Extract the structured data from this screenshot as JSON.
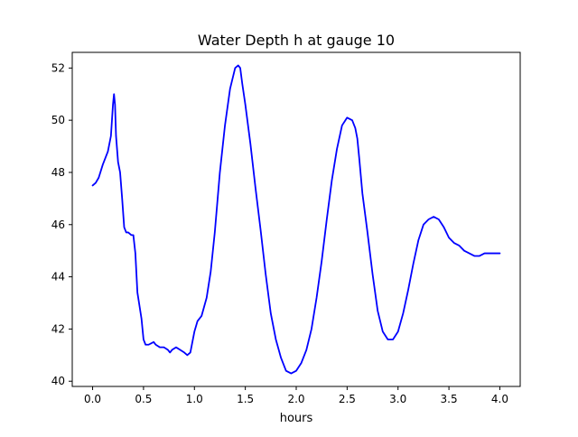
{
  "chart_data": {
    "type": "line",
    "title": "Water Depth h at gauge 10",
    "xlabel": "hours",
    "ylabel": "",
    "xlim": [
      -0.2,
      4.2
    ],
    "ylim": [
      39.8,
      52.6
    ],
    "xticks": [
      0.0,
      0.5,
      1.0,
      1.5,
      2.0,
      2.5,
      3.0,
      3.5,
      4.0
    ],
    "xtick_labels": [
      "0.0",
      "0.5",
      "1.0",
      "1.5",
      "2.0",
      "2.5",
      "3.0",
      "3.5",
      "4.0"
    ],
    "yticks": [
      40,
      42,
      44,
      46,
      48,
      50,
      52
    ],
    "ytick_labels": [
      "40",
      "42",
      "44",
      "46",
      "48",
      "50",
      "52"
    ],
    "grid": false,
    "legend": "none",
    "series": [
      {
        "color": "#0000ff",
        "x": [
          0.0,
          0.03,
          0.06,
          0.1,
          0.15,
          0.18,
          0.2,
          0.21,
          0.22,
          0.23,
          0.25,
          0.27,
          0.29,
          0.31,
          0.33,
          0.35,
          0.38,
          0.4,
          0.42,
          0.44,
          0.46,
          0.48,
          0.5,
          0.52,
          0.55,
          0.6,
          0.62,
          0.66,
          0.7,
          0.74,
          0.76,
          0.78,
          0.82,
          0.86,
          0.9,
          0.93,
          0.96,
          0.98,
          1.0,
          1.03,
          1.07,
          1.12,
          1.16,
          1.2,
          1.25,
          1.3,
          1.35,
          1.4,
          1.43,
          1.45,
          1.47,
          1.5,
          1.55,
          1.6,
          1.65,
          1.7,
          1.75,
          1.8,
          1.85,
          1.9,
          1.95,
          2.0,
          2.05,
          2.1,
          2.15,
          2.2,
          2.25,
          2.3,
          2.35,
          2.4,
          2.45,
          2.5,
          2.55,
          2.58,
          2.6,
          2.62,
          2.65,
          2.7,
          2.75,
          2.8,
          2.85,
          2.9,
          2.95,
          3.0,
          3.05,
          3.1,
          3.15,
          3.2,
          3.25,
          3.3,
          3.35,
          3.4,
          3.45,
          3.5,
          3.55,
          3.6,
          3.65,
          3.7,
          3.75,
          3.8,
          3.85,
          3.9,
          3.95,
          4.0
        ],
        "y": [
          47.5,
          47.6,
          47.8,
          48.3,
          48.8,
          49.4,
          50.6,
          51.0,
          50.6,
          49.4,
          48.4,
          48.0,
          47.0,
          45.9,
          45.7,
          45.7,
          45.6,
          45.6,
          44.9,
          43.4,
          42.9,
          42.4,
          41.6,
          41.4,
          41.4,
          41.5,
          41.4,
          41.3,
          41.3,
          41.2,
          41.1,
          41.2,
          41.3,
          41.2,
          41.1,
          41.0,
          41.1,
          41.5,
          41.9,
          42.3,
          42.5,
          43.2,
          44.2,
          45.7,
          48.0,
          49.8,
          51.2,
          52.0,
          52.1,
          52.0,
          51.4,
          50.6,
          49.1,
          47.4,
          45.8,
          44.1,
          42.6,
          41.6,
          40.9,
          40.4,
          40.3,
          40.4,
          40.7,
          41.2,
          42.0,
          43.2,
          44.6,
          46.2,
          47.7,
          48.9,
          49.8,
          50.1,
          50.0,
          49.7,
          49.3,
          48.5,
          47.2,
          45.7,
          44.1,
          42.7,
          41.9,
          41.6,
          41.6,
          41.9,
          42.6,
          43.5,
          44.5,
          45.4,
          46.0,
          46.2,
          46.3,
          46.2,
          45.9,
          45.5,
          45.3,
          45.2,
          45.0,
          44.9,
          44.8,
          44.8,
          44.9,
          44.9,
          44.9,
          44.9
        ]
      }
    ]
  }
}
